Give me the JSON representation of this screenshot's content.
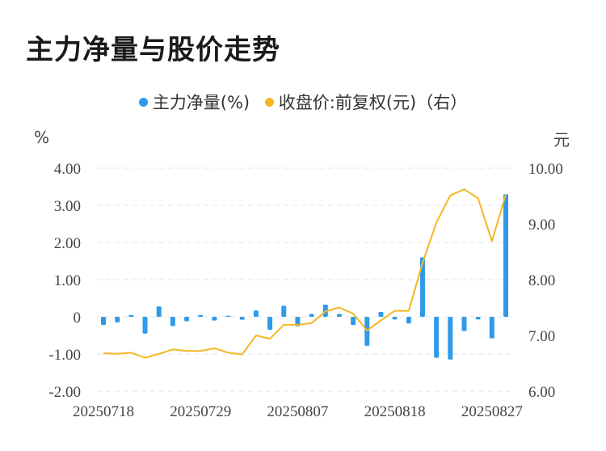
{
  "header": {
    "title": "主力净量与股价走势"
  },
  "legend": {
    "items": [
      {
        "label": "主力净量(%)",
        "color": "#2f9ae8"
      },
      {
        "label": "收盘价:前复权(元)（右）",
        "color": "#f5b623"
      }
    ]
  },
  "units": {
    "left": "%",
    "right": "元"
  },
  "chart_data": {
    "type": "bar+line",
    "title": "主力净量与股价走势",
    "x_tick_labels": [
      "20250718",
      "20250729",
      "20250807",
      "20250818",
      "20250827"
    ],
    "x_tick_indices": [
      0,
      7,
      14,
      21,
      28
    ],
    "y_left": {
      "label": "%",
      "ylim": [
        -2,
        4
      ],
      "ticks": [
        "4.00",
        "3.00",
        "2.00",
        "1.00",
        "0",
        "-1.00",
        "-2.00"
      ],
      "tick_values": [
        4,
        3,
        2,
        1,
        0,
        -1,
        -2
      ]
    },
    "y_right": {
      "label": "元",
      "ylim": [
        6,
        10
      ],
      "ticks": [
        "10.00",
        "9.00",
        "8.00",
        "7.00",
        "6.00"
      ],
      "tick_values": [
        10,
        9,
        8,
        7,
        6
      ]
    },
    "grid": "horizontal dashed",
    "series": [
      {
        "name": "主力净量(%)",
        "type": "bar",
        "axis": "left",
        "color": "#2f9ae8",
        "values": [
          -0.22,
          -0.15,
          0.05,
          -0.45,
          0.28,
          -0.25,
          -0.12,
          0.05,
          -0.1,
          0.03,
          -0.08,
          0.17,
          -0.35,
          0.3,
          -0.25,
          0.08,
          0.33,
          0.08,
          -0.22,
          -0.78,
          0.13,
          -0.07,
          -0.18,
          1.6,
          -1.1,
          -1.15,
          -0.38,
          -0.07,
          -0.58,
          3.3
        ]
      },
      {
        "name": "收盘价:前复权(元)（右）",
        "type": "line",
        "axis": "right",
        "color": "#f5b623",
        "values": [
          6.68,
          6.67,
          6.69,
          6.6,
          6.67,
          6.75,
          6.72,
          6.72,
          6.77,
          6.69,
          6.66,
          7.0,
          6.94,
          7.19,
          7.19,
          7.22,
          7.43,
          7.5,
          7.39,
          7.09,
          7.27,
          7.44,
          7.44,
          8.3,
          9.02,
          9.51,
          9.62,
          9.46,
          8.69,
          9.53
        ]
      }
    ]
  }
}
